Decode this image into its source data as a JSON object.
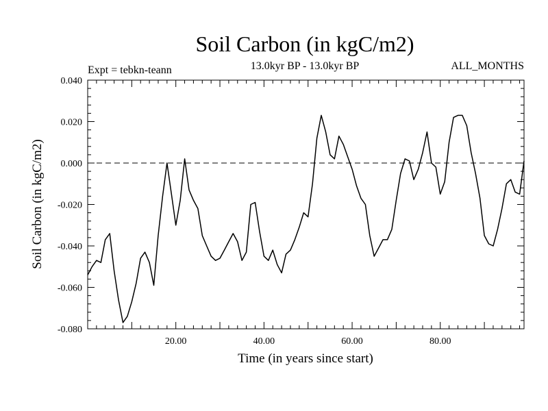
{
  "chart_data": {
    "type": "line",
    "title": "Soil Carbon (in kgC/m2)",
    "subtitle": "13.0kyr BP - 13.0kyr BP",
    "left_note": "Expt = tebkn-teann",
    "right_note": "ALL_MONTHS",
    "xlabel": "Time (in years since start)",
    "ylabel": "Soil Carbon (in kgC/m2)",
    "xlim": [
      0,
      99
    ],
    "ylim": [
      -0.08,
      0.04
    ],
    "x_ticks": [
      20,
      40,
      60,
      80
    ],
    "x_tick_labels": [
      "20.00",
      "40.00",
      "60.00",
      "80.00"
    ],
    "y_ticks": [
      -0.08,
      -0.06,
      -0.04,
      -0.02,
      0.0,
      0.02,
      0.04
    ],
    "y_tick_labels": [
      "-0.080",
      "-0.060",
      "-0.040",
      "-0.020",
      "0.000",
      "0.020",
      "0.040"
    ],
    "reference_line": 0.0,
    "series": [
      {
        "name": "Soil Carbon",
        "x": [
          0,
          1,
          2,
          3,
          4,
          5,
          6,
          7,
          8,
          9,
          10,
          11,
          12,
          13,
          14,
          15,
          16,
          17,
          18,
          19,
          20,
          21,
          22,
          23,
          24,
          25,
          26,
          27,
          28,
          29,
          30,
          31,
          32,
          33,
          34,
          35,
          36,
          37,
          38,
          39,
          40,
          41,
          42,
          43,
          44,
          45,
          46,
          47,
          48,
          49,
          50,
          51,
          52,
          53,
          54,
          55,
          56,
          57,
          58,
          59,
          60,
          61,
          62,
          63,
          64,
          65,
          66,
          67,
          68,
          69,
          70,
          71,
          72,
          73,
          74,
          75,
          76,
          77,
          78,
          79,
          80,
          81,
          82,
          83,
          84,
          85,
          86,
          87,
          88,
          89,
          90,
          91,
          92,
          93,
          94,
          95,
          96,
          97,
          98,
          99
        ],
        "y": [
          -0.054,
          -0.05,
          -0.047,
          -0.048,
          -0.037,
          -0.034,
          -0.052,
          -0.066,
          -0.077,
          -0.074,
          -0.067,
          -0.058,
          -0.046,
          -0.043,
          -0.048,
          -0.059,
          -0.035,
          -0.016,
          0.0,
          -0.015,
          -0.03,
          -0.018,
          0.002,
          -0.013,
          -0.018,
          -0.022,
          -0.035,
          -0.04,
          -0.045,
          -0.047,
          -0.046,
          -0.042,
          -0.038,
          -0.034,
          -0.038,
          -0.047,
          -0.043,
          -0.02,
          -0.019,
          -0.033,
          -0.045,
          -0.047,
          -0.042,
          -0.049,
          -0.053,
          -0.044,
          -0.042,
          -0.037,
          -0.031,
          -0.024,
          -0.026,
          -0.01,
          0.012,
          0.023,
          0.015,
          0.004,
          0.002,
          0.013,
          0.009,
          0.003,
          -0.003,
          -0.011,
          -0.017,
          -0.02,
          -0.035,
          -0.045,
          -0.041,
          -0.037,
          -0.037,
          -0.032,
          -0.018,
          -0.005,
          0.002,
          0.001,
          -0.008,
          -0.003,
          0.005,
          0.015,
          0.0,
          -0.002,
          -0.015,
          -0.009,
          0.01,
          0.022,
          0.023,
          0.023,
          0.018,
          0.005,
          -0.005,
          -0.017,
          -0.035,
          -0.039,
          -0.04,
          -0.032,
          -0.022,
          -0.01,
          -0.008,
          -0.014,
          -0.015,
          0.001
        ]
      }
    ]
  }
}
